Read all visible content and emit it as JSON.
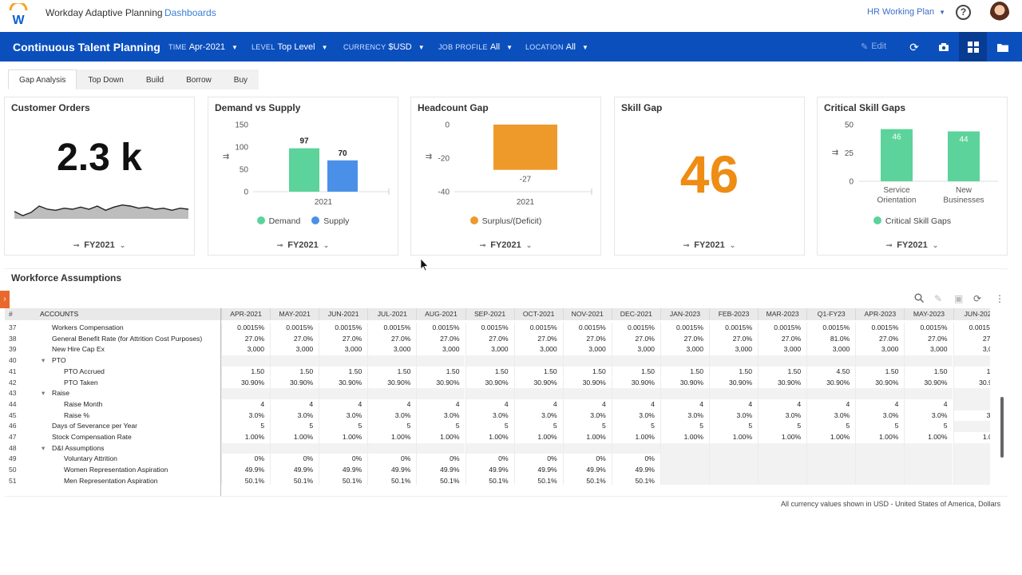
{
  "app": {
    "title": "Workday Adaptive Planning",
    "breadcrumb": "Dashboards",
    "plan": "HR Working Plan",
    "help": "?"
  },
  "toolbar": {
    "dashboard_title": "Continuous Talent Planning",
    "filters": [
      {
        "label": "TIME",
        "value": "Apr-2021"
      },
      {
        "label": "LEVEL",
        "value": "Top Level"
      },
      {
        "label": "CURRENCY",
        "value": "$USD"
      },
      {
        "label": "JOB PROFILE",
        "value": "All"
      },
      {
        "label": "LOCATION",
        "value": "All"
      }
    ],
    "edit_label": "Edit"
  },
  "tabs": [
    "Gap Analysis",
    "Top Down",
    "Build",
    "Borrow",
    "Buy"
  ],
  "cards": {
    "customer_orders": {
      "title": "Customer Orders",
      "value": "2.3 k",
      "period": "FY2021"
    },
    "demand_supply": {
      "title": "Demand vs Supply",
      "period": "FY2021",
      "legend": [
        "Demand",
        "Supply"
      ]
    },
    "headcount_gap": {
      "title": "Headcount Gap",
      "period": "FY2021",
      "legend": [
        "Surplus/(Deficit)"
      ]
    },
    "skill_gap": {
      "title": "Skill Gap",
      "value": "46",
      "period": "FY2021"
    },
    "critical_skill_gaps": {
      "title": "Critical Skill Gaps",
      "period": "FY2021",
      "legend": [
        "Critical Skill Gaps"
      ]
    }
  },
  "chart_data": [
    {
      "type": "line",
      "title": "Customer Orders",
      "x": [
        1,
        2,
        3,
        4,
        5,
        6,
        7,
        8,
        9,
        10,
        11,
        12,
        13,
        14,
        15,
        16,
        17,
        18,
        19,
        20,
        21,
        22
      ],
      "values": [
        7,
        3,
        6,
        12,
        9,
        8,
        10,
        9,
        11,
        9,
        12,
        8,
        11,
        13,
        12,
        10,
        11,
        9,
        10,
        8,
        10,
        9
      ],
      "ylim": [
        0,
        15
      ]
    },
    {
      "type": "bar",
      "title": "Demand vs Supply",
      "categories": [
        "2021"
      ],
      "series": [
        {
          "name": "Demand",
          "values": [
            97
          ],
          "color": "#5bd39a"
        },
        {
          "name": "Supply",
          "values": [
            70
          ],
          "color": "#4a90e8"
        }
      ],
      "yticks": [
        "0",
        "50",
        "100",
        "150"
      ],
      "ylim": [
        0,
        150
      ]
    },
    {
      "type": "bar",
      "title": "Headcount Gap",
      "categories": [
        "2021"
      ],
      "series": [
        {
          "name": "Surplus/(Deficit)",
          "values": [
            -27
          ],
          "color": "#ee9a2a"
        }
      ],
      "yticks": [
        "0",
        "-20",
        "-40"
      ],
      "ylim": [
        -40,
        0
      ]
    },
    {
      "type": "bar",
      "title": "Critical Skill Gaps",
      "categories": [
        "Service Orientation",
        "New Businesses"
      ],
      "category_lines": [
        [
          "Service",
          "Orientation"
        ],
        [
          "New",
          "Businesses"
        ]
      ],
      "series": [
        {
          "name": "Critical Skill Gaps",
          "values": [
            46,
            44
          ],
          "color": "#5bd39a"
        }
      ],
      "yticks": [
        "0",
        "25",
        "50"
      ],
      "ylim": [
        0,
        50
      ]
    }
  ],
  "assumptions": {
    "title": "Workforce Assumptions",
    "header_num": "#",
    "header_accounts": "ACCOUNTS",
    "columns": [
      "APR-2021",
      "MAY-2021",
      "JUN-2021",
      "JUL-2021",
      "AUG-2021",
      "SEP-2021",
      "OCT-2021",
      "NOV-2021",
      "DEC-2021",
      "JAN-2023",
      "FEB-2023",
      "MAR-2023",
      "Q1-FY23",
      "APR-2023",
      "MAY-2023",
      "JUN-202"
    ],
    "rows": [
      {
        "n": "37",
        "name": "Workers Compensation",
        "indent": 1,
        "vals": [
          "0.0015%",
          "0.0015%",
          "0.0015%",
          "0.0015%",
          "0.0015%",
          "0.0015%",
          "0.0015%",
          "0.0015%",
          "0.0015%",
          "0.0015%",
          "0.0015%",
          "0.0015%",
          "0.0015%",
          "0.0015%",
          "0.0015%",
          "0.0015%"
        ]
      },
      {
        "n": "38",
        "name": "General Benefit Rate (for Attrition Cost Purposes)",
        "indent": 1,
        "vals": [
          "27.0%",
          "27.0%",
          "27.0%",
          "27.0%",
          "27.0%",
          "27.0%",
          "27.0%",
          "27.0%",
          "27.0%",
          "27.0%",
          "27.0%",
          "27.0%",
          "81.0%",
          "27.0%",
          "27.0%",
          "27.0"
        ]
      },
      {
        "n": "39",
        "name": "New Hire Cap Ex",
        "indent": 1,
        "vals": [
          "3,000",
          "3,000",
          "3,000",
          "3,000",
          "3,000",
          "3,000",
          "3,000",
          "3,000",
          "3,000",
          "3,000",
          "3,000",
          "3,000",
          "3,000",
          "3,000",
          "3,000",
          "3,00"
        ]
      },
      {
        "n": "40",
        "name": "PTO",
        "indent": 1,
        "group": true,
        "vals": [
          "",
          "",
          "",
          "",
          "",
          "",
          "",
          "",
          "",
          "",
          "",
          "",
          "",
          "",
          "",
          ""
        ]
      },
      {
        "n": "41",
        "name": "PTO Accrued",
        "indent": 2,
        "vals": [
          "1.50",
          "1.50",
          "1.50",
          "1.50",
          "1.50",
          "1.50",
          "1.50",
          "1.50",
          "1.50",
          "1.50",
          "1.50",
          "1.50",
          "4.50",
          "1.50",
          "1.50",
          "1.5"
        ]
      },
      {
        "n": "42",
        "name": "PTO Taken",
        "indent": 2,
        "vals": [
          "30.90%",
          "30.90%",
          "30.90%",
          "30.90%",
          "30.90%",
          "30.90%",
          "30.90%",
          "30.90%",
          "30.90%",
          "30.90%",
          "30.90%",
          "30.90%",
          "30.90%",
          "30.90%",
          "30.90%",
          "30.90"
        ]
      },
      {
        "n": "43",
        "name": "Raise",
        "indent": 1,
        "group": true,
        "vals": [
          "",
          "",
          "",
          "",
          "",
          "",
          "",
          "",
          "",
          "",
          "",
          "",
          "",
          "",
          "",
          ""
        ]
      },
      {
        "n": "44",
        "name": "Raise Month",
        "indent": 2,
        "vals": [
          "4",
          "4",
          "4",
          "4",
          "4",
          "4",
          "4",
          "4",
          "4",
          "4",
          "4",
          "4",
          "4",
          "4",
          "4",
          ""
        ]
      },
      {
        "n": "45",
        "name": "Raise %",
        "indent": 2,
        "vals": [
          "3.0%",
          "3.0%",
          "3.0%",
          "3.0%",
          "3.0%",
          "3.0%",
          "3.0%",
          "3.0%",
          "3.0%",
          "3.0%",
          "3.0%",
          "3.0%",
          "3.0%",
          "3.0%",
          "3.0%",
          "3.0"
        ]
      },
      {
        "n": "46",
        "name": "Days of Severance per Year",
        "indent": 1,
        "vals": [
          "5",
          "5",
          "5",
          "5",
          "5",
          "5",
          "5",
          "5",
          "5",
          "5",
          "5",
          "5",
          "5",
          "5",
          "5",
          ""
        ]
      },
      {
        "n": "47",
        "name": "Stock Compensation Rate",
        "indent": 1,
        "vals": [
          "1.00%",
          "1.00%",
          "1.00%",
          "1.00%",
          "1.00%",
          "1.00%",
          "1.00%",
          "1.00%",
          "1.00%",
          "1.00%",
          "1.00%",
          "1.00%",
          "1.00%",
          "1.00%",
          "1.00%",
          "1.00"
        ]
      },
      {
        "n": "48",
        "name": "D&I Assumptions",
        "indent": 1,
        "group": true,
        "vals": [
          "",
          "",
          "",
          "",
          "",
          "",
          "",
          "",
          "",
          "",
          "",
          "",
          "",
          "",
          "",
          ""
        ]
      },
      {
        "n": "49",
        "name": "Voluntary Attrition",
        "indent": 2,
        "vals": [
          "0%",
          "0%",
          "0%",
          "0%",
          "0%",
          "0%",
          "0%",
          "0%",
          "0%",
          "",
          "",
          "",
          "",
          "",
          "",
          ""
        ]
      },
      {
        "n": "50",
        "name": "Women Representation Aspiration",
        "indent": 2,
        "vals": [
          "49.9%",
          "49.9%",
          "49.9%",
          "49.9%",
          "49.9%",
          "49.9%",
          "49.9%",
          "49.9%",
          "49.9%",
          "",
          "",
          "",
          "",
          "",
          "",
          ""
        ]
      },
      {
        "n": "51",
        "name": "Men Representation Aspiration",
        "indent": 2,
        "vals": [
          "50.1%",
          "50.1%",
          "50.1%",
          "50.1%",
          "50.1%",
          "50.1%",
          "50.1%",
          "50.1%",
          "50.1%",
          "",
          "",
          "",
          "",
          "",
          "",
          ""
        ]
      }
    ],
    "footnote": "All currency values shown in USD - United States of America, Dollars"
  },
  "colors": {
    "brand_blue": "#0b4fbd",
    "accent_orange": "#ee8c14",
    "demand_green": "#5bd39a",
    "supply_blue": "#4a90e8"
  }
}
